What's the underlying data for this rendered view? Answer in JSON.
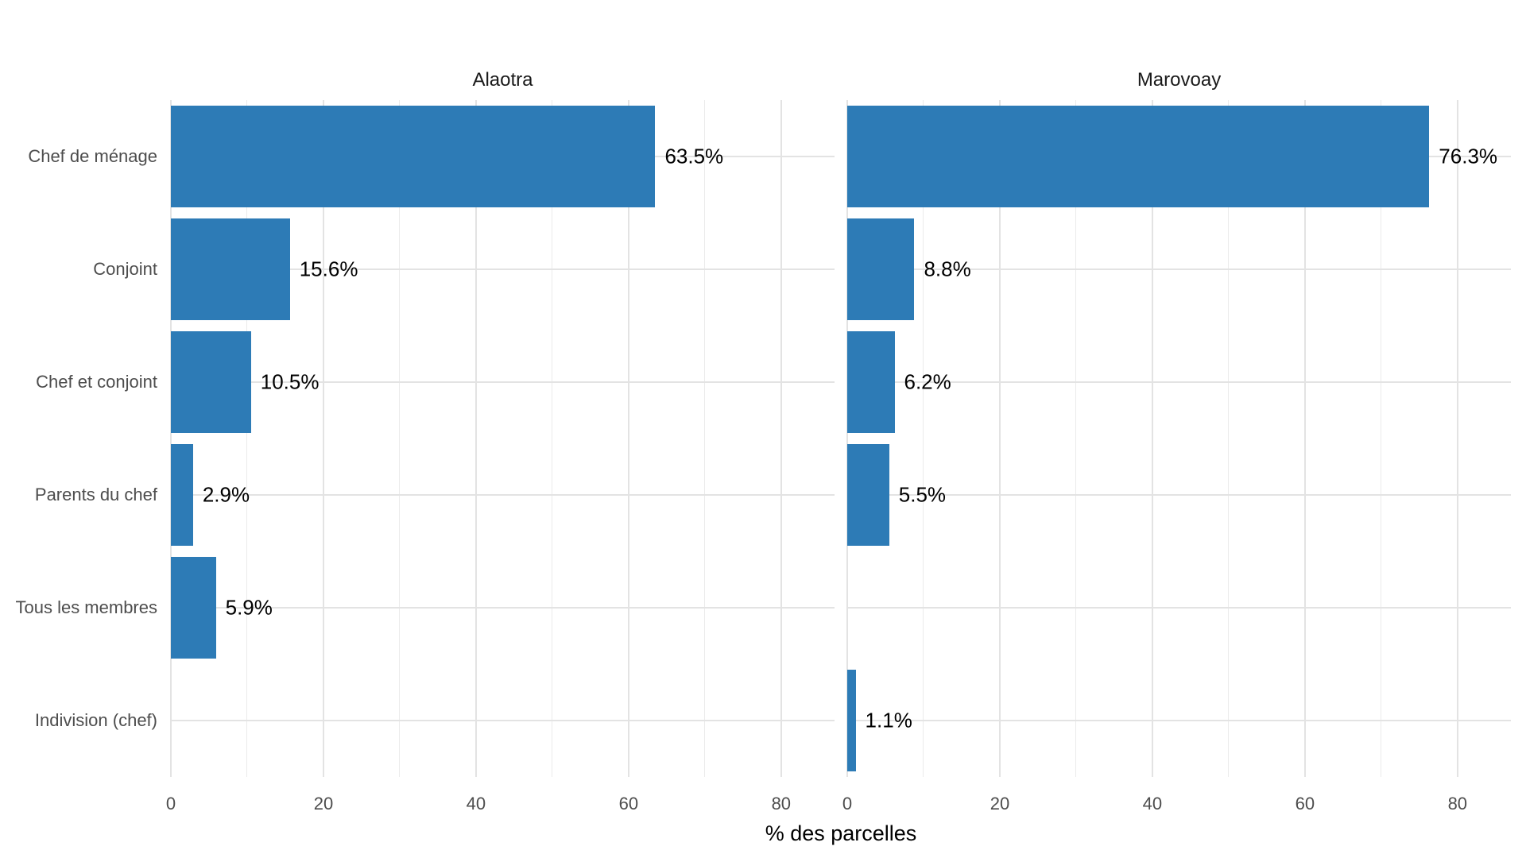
{
  "page": {
    "background": "#ffffff"
  },
  "chart_data": {
    "type": "bar",
    "orientation": "horizontal",
    "categories": [
      "Chef de ménage",
      "Conjoint",
      "Chef et conjoint",
      "Parents du chef",
      "Tous les membres",
      "Indivision (chef)"
    ],
    "facets": [
      {
        "title": "Alaotra",
        "values": [
          63.5,
          15.6,
          10.5,
          2.9,
          5.9,
          null
        ],
        "value_labels": [
          "63.5%",
          "15.6%",
          "10.5%",
          "2.9%",
          "5.9%",
          null
        ]
      },
      {
        "title": "Marovoay",
        "values": [
          76.3,
          8.8,
          6.2,
          5.5,
          null,
          1.1
        ],
        "value_labels": [
          "76.3%",
          "8.8%",
          "6.2%",
          "5.5%",
          null,
          "1.1%"
        ]
      }
    ],
    "xlabel": "% des parcelles",
    "x_ticks": [
      0,
      20,
      40,
      60,
      80
    ],
    "x_minor_ticks": [
      10,
      30,
      50,
      70
    ],
    "xlim": [
      0,
      87
    ],
    "grid": true,
    "legend": "none",
    "bar_color": "#2d7bb6",
    "grid_major_color": "#e3e3e3",
    "grid_minor_color": "#ebebeb",
    "axis_text_color": "#4d4d4d",
    "value_label_color": "#000000",
    "facet_title_color": "#1a1a1a"
  }
}
